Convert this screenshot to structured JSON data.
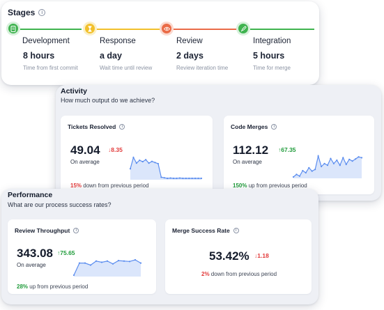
{
  "stages": {
    "title": "Stages",
    "items": [
      {
        "name": "Development",
        "value": "8 hours",
        "desc": "Time from first commit",
        "color": "#3fb34f",
        "bg": "#d8f0dc",
        "icon": "document-icon"
      },
      {
        "name": "Response",
        "value": "a day",
        "desc": "Wait time until review",
        "color": "#f2c02b",
        "bg": "#fbf0c8",
        "icon": "hourglass-icon"
      },
      {
        "name": "Review",
        "value": "2 days",
        "desc": "Review iteration time",
        "color": "#ea6b47",
        "bg": "#fbd9cf",
        "icon": "eye-icon"
      },
      {
        "name": "Integration",
        "value": "5 hours",
        "desc": "Time for merge",
        "color": "#3fb34f",
        "bg": "#d8f0dc",
        "icon": "rocket-icon"
      }
    ]
  },
  "activity": {
    "title": "Activity",
    "subtitle": "How much output do we achieve?",
    "cards": [
      {
        "title": "Tickets Resolved",
        "value": "49.04",
        "delta": "8.35",
        "delta_dir": "down",
        "avg_label": "On average",
        "foot_pct": "15%",
        "foot_text": "down from previous period",
        "sparkline": [
          5,
          9,
          7,
          8,
          7.5,
          8.2,
          7,
          7.6,
          7.2,
          6.8,
          2,
          1.8,
          1.6,
          1.7,
          1.6,
          1.6,
          1.7,
          1.6,
          1.6,
          1.6,
          1.6,
          1.6,
          1.6,
          1.6
        ]
      },
      {
        "title": "Code Merges",
        "value": "112.12",
        "delta": "67.35",
        "delta_dir": "up",
        "avg_label": "On average",
        "foot_pct": "150%",
        "foot_text": "up from previous period",
        "sparkline": [
          2,
          2.6,
          2.2,
          3.5,
          3,
          4.2,
          3.4,
          3.8,
          7,
          4.5,
          5.2,
          4.8,
          6.4,
          5.2,
          6,
          4.8,
          6.6,
          5,
          6.2,
          5.8,
          6.3,
          6.8,
          6.6
        ]
      }
    ]
  },
  "performance": {
    "title": "Performance",
    "subtitle": "What are our process success rates?",
    "cards": [
      {
        "title": "Review Throughput",
        "value": "343.08",
        "delta": "75.65",
        "delta_dir": "up",
        "avg_label": "On average",
        "foot_pct": "28%",
        "foot_text": "up from previous period",
        "sparkline": [
          2,
          5,
          5,
          4.5,
          5.5,
          5.2,
          5.5,
          4.8,
          5.6,
          5.5,
          5.4,
          5.8,
          5
        ]
      },
      {
        "title": "Merge Success Rate",
        "value": "53.42%",
        "delta": "1.18",
        "delta_dir": "down",
        "foot_pct": "2%",
        "foot_text": "down from previous period"
      }
    ]
  },
  "colors": {
    "spark_line": "#5b8def",
    "spark_fill": "#dbe6fb",
    "red": "#e23a3a",
    "green": "#1f9b3a"
  }
}
